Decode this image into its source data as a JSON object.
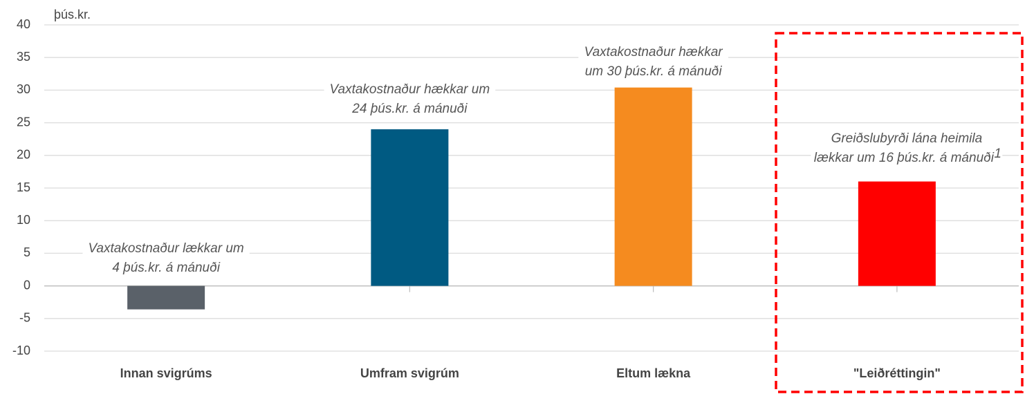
{
  "chart_data": {
    "type": "bar",
    "unit_label": "þús.kr.",
    "categories": [
      "Innan svigrúms",
      "Umfram svigrúm",
      "Eltum lækna",
      "\"Leiðréttingin\""
    ],
    "values": [
      -3.6,
      24,
      30.4,
      16
    ],
    "colors": [
      "#5a6169",
      "#005a82",
      "#f58b1f",
      "#ff0000"
    ],
    "annotations": [
      {
        "lines": [
          "Vaxtakostnaður lækkar um",
          "4 þús.kr. á mánuði"
        ]
      },
      {
        "lines": [
          "Vaxtakostnaður hækkar um",
          "24 þús.kr. á mánuði"
        ]
      },
      {
        "lines": [
          "Vaxtakostnaður hækkar",
          "um 30 þús.kr. á mánuði"
        ]
      },
      {
        "lines": [
          "Greiðslubyrði lána heimila",
          "lækkar um 16 þús.kr. á mánuði"
        ],
        "note_mark": "1"
      }
    ],
    "ylim": [
      -10,
      40
    ],
    "yticks": [
      -10,
      -5,
      0,
      5,
      10,
      15,
      20,
      25,
      30,
      35,
      40
    ],
    "grid": true
  }
}
